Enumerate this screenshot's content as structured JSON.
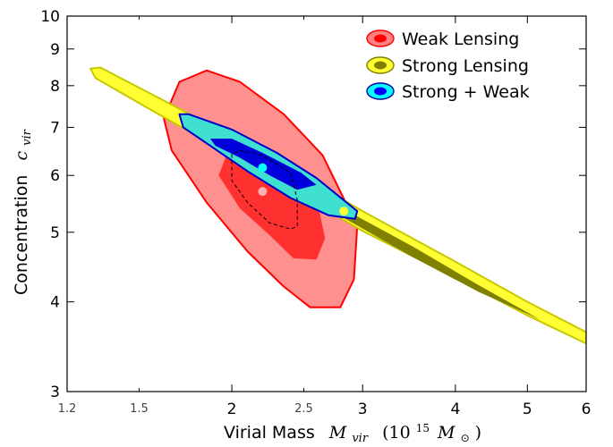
{
  "chart_data": {
    "type": "scatter",
    "title": "",
    "xlabel": {
      "text": "Virial Mass",
      "symbol": "M",
      "symbol_sub": "vir",
      "unit_prefix": "(10",
      "unit_exp": "15",
      "unit_symbol": "M",
      "unit_sub": "⊙",
      "unit_suffix": ")"
    },
    "ylabel": {
      "text": "Concentration",
      "symbol": "c",
      "symbol_sub": "vir"
    },
    "x_scale": "log",
    "y_scale": "log",
    "xlim": [
      1.2,
      6
    ],
    "ylim": [
      3,
      10
    ],
    "x_ticks_major": [
      {
        "value": 2,
        "label": "2"
      },
      {
        "value": 3,
        "label": "3"
      },
      {
        "value": 4,
        "label": "4"
      },
      {
        "value": 5,
        "label": "5"
      },
      {
        "value": 6,
        "label": "6"
      }
    ],
    "x_ticks_minor": [
      {
        "value": 1.2,
        "label": "1.2"
      },
      {
        "value": 1.5,
        "label": "1.5"
      },
      {
        "value": 2.5,
        "label": "2.5"
      }
    ],
    "y_ticks": [
      {
        "value": 3,
        "label": "3"
      },
      {
        "value": 4,
        "label": "4"
      },
      {
        "value": 5,
        "label": "5"
      },
      {
        "value": 6,
        "label": "6"
      },
      {
        "value": 7,
        "label": "7"
      },
      {
        "value": 8,
        "label": "8"
      },
      {
        "value": 9,
        "label": "9"
      },
      {
        "value": 10,
        "label": "10"
      }
    ],
    "grid": false,
    "legend_position": "top-right",
    "legend": [
      {
        "label": "Weak Lensing",
        "outer_color": "#ff8080",
        "inner_color": "#ff0000",
        "edge": "#ff0000"
      },
      {
        "label": "Strong Lensing",
        "outer_color": "#ffff33",
        "inner_color": "#808000",
        "edge": "#808000"
      },
      {
        "label": "Strong + Weak",
        "outer_color": "#00ffff",
        "inner_color": "#0000ff",
        "edge": "#0000aa"
      }
    ],
    "contours": [
      {
        "series": "Weak Lensing",
        "level": "outer",
        "fill": "#ff9090",
        "stroke": "#ff0000",
        "points": [
          [
            1.62,
            7.2
          ],
          [
            1.7,
            8.1
          ],
          [
            1.85,
            8.4
          ],
          [
            2.05,
            8.1
          ],
          [
            2.35,
            7.3
          ],
          [
            2.65,
            6.4
          ],
          [
            2.95,
            5.1
          ],
          [
            2.92,
            4.3
          ],
          [
            2.8,
            3.93
          ],
          [
            2.55,
            3.93
          ],
          [
            2.35,
            4.2
          ],
          [
            2.1,
            4.7
          ],
          [
            1.85,
            5.5
          ],
          [
            1.66,
            6.5
          ]
        ]
      },
      {
        "series": "Weak Lensing",
        "level": "inner",
        "fill": "#ff3030",
        "stroke": "none",
        "points": [
          [
            1.92,
            6.0
          ],
          [
            2.0,
            6.7
          ],
          [
            2.15,
            6.7
          ],
          [
            2.35,
            6.3
          ],
          [
            2.6,
            5.6
          ],
          [
            2.67,
            4.9
          ],
          [
            2.6,
            4.58
          ],
          [
            2.42,
            4.6
          ],
          [
            2.25,
            4.95
          ],
          [
            2.05,
            5.4
          ]
        ]
      },
      {
        "series": "Strong Lensing",
        "level": "outer",
        "fill": "#ffff33",
        "stroke": "#c8c800",
        "points": [
          [
            1.29,
            8.45
          ],
          [
            1.33,
            8.48
          ],
          [
            1.65,
            7.55
          ],
          [
            2.2,
            6.45
          ],
          [
            3.0,
            5.35
          ],
          [
            4.0,
            4.55
          ],
          [
            5.0,
            4.0
          ],
          [
            6.0,
            3.63
          ],
          [
            6.0,
            3.5
          ],
          [
            5.0,
            3.83
          ],
          [
            4.0,
            4.32
          ],
          [
            3.0,
            5.02
          ],
          [
            2.2,
            6.05
          ],
          [
            1.65,
            7.15
          ],
          [
            1.31,
            8.2
          ]
        ]
      },
      {
        "series": "Strong Lensing",
        "level": "inner",
        "fill": "#808000",
        "stroke": "none",
        "points": [
          [
            2.2,
            6.28
          ],
          [
            2.8,
            5.42
          ],
          [
            3.5,
            4.78
          ],
          [
            4.3,
            4.22
          ],
          [
            5.2,
            3.78
          ],
          [
            4.3,
            4.13
          ],
          [
            3.5,
            4.62
          ],
          [
            2.8,
            5.27
          ],
          [
            2.2,
            6.13
          ]
        ]
      },
      {
        "series": "Strong + Weak",
        "level": "outer",
        "fill": "#40e0d0",
        "stroke": "#0000cc",
        "points": [
          [
            1.7,
            7.3
          ],
          [
            1.75,
            7.3
          ],
          [
            2.0,
            6.95
          ],
          [
            2.3,
            6.45
          ],
          [
            2.6,
            5.95
          ],
          [
            2.95,
            5.35
          ],
          [
            2.93,
            5.22
          ],
          [
            2.7,
            5.28
          ],
          [
            2.4,
            5.58
          ],
          [
            2.1,
            6.08
          ],
          [
            1.85,
            6.65
          ],
          [
            1.72,
            7.0
          ]
        ]
      },
      {
        "series": "Strong + Weak",
        "level": "inner",
        "fill": "#0000dd",
        "stroke": "none",
        "points": [
          [
            1.87,
            6.75
          ],
          [
            2.0,
            6.75
          ],
          [
            2.2,
            6.45
          ],
          [
            2.48,
            6.05
          ],
          [
            2.6,
            5.82
          ],
          [
            2.45,
            5.73
          ],
          [
            2.25,
            6.0
          ],
          [
            2.05,
            6.35
          ],
          [
            1.9,
            6.6
          ]
        ]
      },
      {
        "series": "Weak Lensing",
        "level": "dashed-outline",
        "fill": "none",
        "stroke": "#000000",
        "points": [
          [
            2.0,
            6.42
          ],
          [
            2.0,
            5.9
          ],
          [
            2.1,
            5.5
          ],
          [
            2.25,
            5.15
          ],
          [
            2.4,
            5.05
          ],
          [
            2.45,
            5.1
          ],
          [
            2.45,
            5.55
          ],
          [
            2.4,
            6.05
          ],
          [
            2.2,
            6.4
          ],
          [
            2.05,
            6.5
          ]
        ]
      }
    ],
    "points": [
      {
        "series": "Strong + Weak",
        "x": 2.2,
        "y": 6.15,
        "color": "#00ffff"
      },
      {
        "series": "Weak Lensing",
        "x": 2.2,
        "y": 5.7,
        "color": "#ffb0b0"
      },
      {
        "series": "Strong Lensing",
        "x": 2.83,
        "y": 5.35,
        "color": "#ffff33"
      }
    ]
  }
}
